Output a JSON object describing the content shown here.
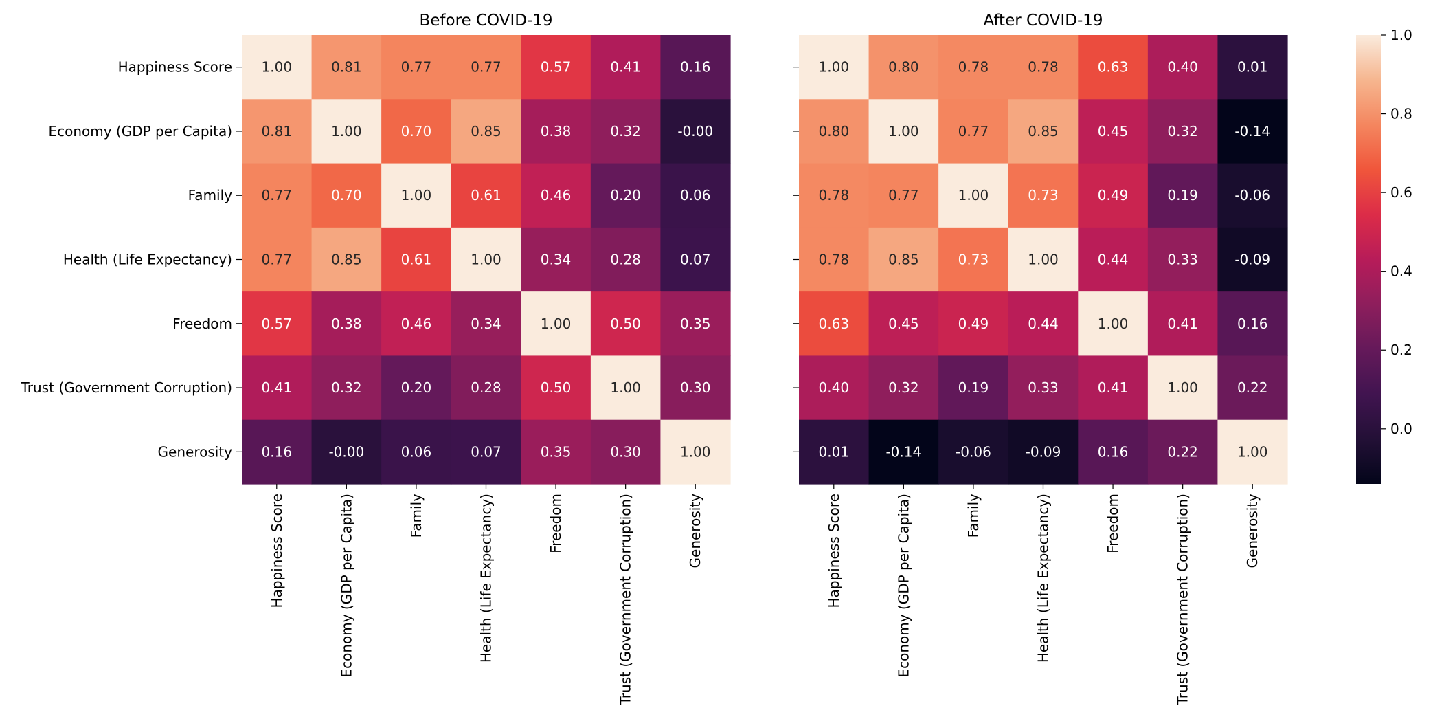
{
  "chart_data": [
    {
      "type": "heatmap",
      "title": "Before COVID-19",
      "row_labels": [
        "Happiness Score",
        "Economy (GDP per Capita)",
        "Family",
        "Health (Life Expectancy)",
        "Freedom",
        "Trust (Government Corruption)",
        "Generosity"
      ],
      "col_labels": [
        "Happiness Score",
        "Economy (GDP per Capita)",
        "Family",
        "Health (Life Expectancy)",
        "Freedom",
        "Trust (Government Corruption)",
        "Generosity"
      ],
      "values": [
        [
          1.0,
          0.81,
          0.77,
          0.77,
          0.57,
          0.41,
          0.16
        ],
        [
          0.81,
          1.0,
          0.7,
          0.85,
          0.38,
          0.32,
          -0.0
        ],
        [
          0.77,
          0.7,
          1.0,
          0.61,
          0.46,
          0.2,
          0.06
        ],
        [
          0.77,
          0.85,
          0.61,
          1.0,
          0.34,
          0.28,
          0.07
        ],
        [
          0.57,
          0.38,
          0.46,
          0.34,
          1.0,
          0.5,
          0.35
        ],
        [
          0.41,
          0.32,
          0.2,
          0.28,
          0.5,
          1.0,
          0.3
        ],
        [
          0.16,
          -0.0,
          0.06,
          0.07,
          0.35,
          0.3,
          1.0
        ]
      ],
      "labels": [
        [
          "1.00",
          "0.81",
          "0.77",
          "0.77",
          "0.57",
          "0.41",
          "0.16"
        ],
        [
          "0.81",
          "1.00",
          "0.70",
          "0.85",
          "0.38",
          "0.32",
          "-0.00"
        ],
        [
          "0.77",
          "0.70",
          "1.00",
          "0.61",
          "0.46",
          "0.20",
          "0.06"
        ],
        [
          "0.77",
          "0.85",
          "0.61",
          "1.00",
          "0.34",
          "0.28",
          "0.07"
        ],
        [
          "0.57",
          "0.38",
          "0.46",
          "0.34",
          "1.00",
          "0.50",
          "0.35"
        ],
        [
          "0.41",
          "0.32",
          "0.20",
          "0.28",
          "0.50",
          "1.00",
          "0.30"
        ],
        [
          "0.16",
          "-0.00",
          "0.06",
          "0.07",
          "0.35",
          "0.30",
          "1.00"
        ]
      ]
    },
    {
      "type": "heatmap",
      "title": "After COVID-19",
      "row_labels": [
        "Happiness Score",
        "Economy (GDP per Capita)",
        "Family",
        "Health (Life Expectancy)",
        "Freedom",
        "Trust (Government Corruption)",
        "Generosity"
      ],
      "col_labels": [
        "Happiness Score",
        "Economy (GDP per Capita)",
        "Family",
        "Health (Life Expectancy)",
        "Freedom",
        "Trust (Government Corruption)",
        "Generosity"
      ],
      "values": [
        [
          1.0,
          0.8,
          0.78,
          0.78,
          0.63,
          0.4,
          0.01
        ],
        [
          0.8,
          1.0,
          0.77,
          0.85,
          0.45,
          0.32,
          -0.14
        ],
        [
          0.78,
          0.77,
          1.0,
          0.73,
          0.49,
          0.19,
          -0.06
        ],
        [
          0.78,
          0.85,
          0.73,
          1.0,
          0.44,
          0.33,
          -0.09
        ],
        [
          0.63,
          0.45,
          0.49,
          0.44,
          1.0,
          0.41,
          0.16
        ],
        [
          0.4,
          0.32,
          0.19,
          0.33,
          0.41,
          1.0,
          0.22
        ],
        [
          0.01,
          -0.14,
          -0.06,
          -0.09,
          0.16,
          0.22,
          1.0
        ]
      ],
      "labels": [
        [
          "1.00",
          "0.80",
          "0.78",
          "0.78",
          "0.63",
          "0.40",
          "0.01"
        ],
        [
          "0.80",
          "1.00",
          "0.77",
          "0.85",
          "0.45",
          "0.32",
          "-0.14"
        ],
        [
          "0.78",
          "0.77",
          "1.00",
          "0.73",
          "0.49",
          "0.19",
          "-0.06"
        ],
        [
          "0.78",
          "0.85",
          "0.73",
          "1.00",
          "0.44",
          "0.33",
          "-0.09"
        ],
        [
          "0.63",
          "0.45",
          "0.49",
          "0.44",
          "1.00",
          "0.41",
          "0.16"
        ],
        [
          "0.40",
          "0.32",
          "0.19",
          "0.33",
          "0.41",
          "1.00",
          "0.22"
        ],
        [
          "0.01",
          "-0.14",
          "-0.06",
          "-0.09",
          "0.16",
          "0.22",
          "1.00"
        ]
      ]
    }
  ],
  "colorbar": {
    "colormap": "rocket",
    "vmin": -0.14,
    "vmax": 1.0,
    "ticks": [
      0.0,
      0.2,
      0.4,
      0.6,
      0.8,
      1.0
    ],
    "tick_labels": [
      "0.0",
      "0.2",
      "0.4",
      "0.6",
      "0.8",
      "1.0"
    ]
  }
}
